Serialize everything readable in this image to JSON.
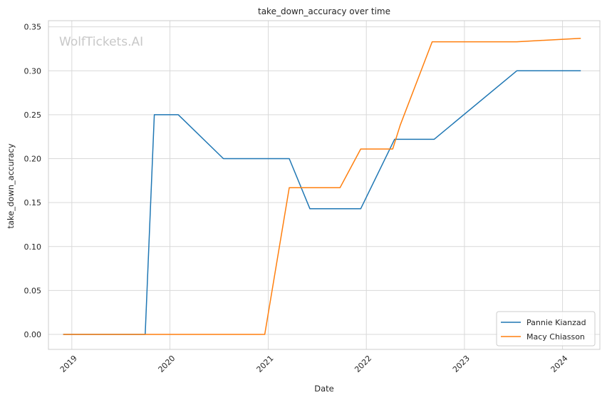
{
  "chart_data": {
    "type": "line",
    "title": "take_down_accuracy over time",
    "xlabel": "Date",
    "ylabel": "take_down_accuracy",
    "watermark": "WolfTickets.AI",
    "x_tick_labels": [
      "2019",
      "2020",
      "2021",
      "2022",
      "2023",
      "2024"
    ],
    "y_tick_labels": [
      "0.00",
      "0.05",
      "0.10",
      "0.15",
      "0.20",
      "0.25",
      "0.30",
      "0.35"
    ],
    "x_range": [
      "2018-10-06",
      "2024-05-19"
    ],
    "ylim": [
      -0.017,
      0.357
    ],
    "grid": true,
    "legend_position": "lower-right",
    "series": [
      {
        "name": "Pannie Kianzad",
        "color": "#1f77b4",
        "points": [
          [
            "2018-11-30",
            0.0
          ],
          [
            "2019-10-01",
            0.0
          ],
          [
            "2019-11-04",
            0.25
          ],
          [
            "2020-02-01",
            0.25
          ],
          [
            "2020-07-18",
            0.2
          ],
          [
            "2021-03-20",
            0.2
          ],
          [
            "2021-06-05",
            0.143
          ],
          [
            "2021-12-11",
            0.143
          ],
          [
            "2022-04-16",
            0.222
          ],
          [
            "2022-09-10",
            0.222
          ],
          [
            "2023-07-15",
            0.3
          ],
          [
            "2024-03-09",
            0.3
          ]
        ]
      },
      {
        "name": "Macy Chiasson",
        "color": "#ff7f0e",
        "points": [
          [
            "2018-11-30",
            0.0
          ],
          [
            "2020-12-19",
            0.0
          ],
          [
            "2021-03-20",
            0.167
          ],
          [
            "2021-09-25",
            0.167
          ],
          [
            "2021-12-11",
            0.211
          ],
          [
            "2022-04-09",
            0.211
          ],
          [
            "2022-05-07",
            0.238
          ],
          [
            "2022-09-03",
            0.333
          ],
          [
            "2023-07-15",
            0.333
          ],
          [
            "2024-03-09",
            0.337
          ]
        ]
      }
    ]
  }
}
